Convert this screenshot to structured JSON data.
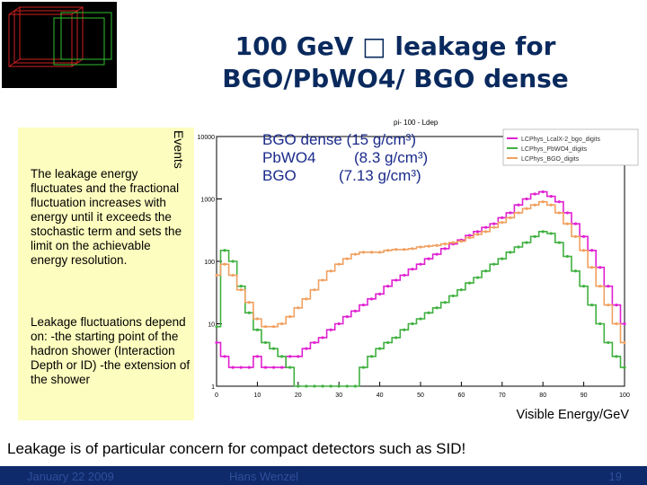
{
  "slide": {
    "title_line1": "100 GeV □ leakage for",
    "title_line2": "BGO/PbWO4/ BGO dense",
    "note1": "The leakage energy fluctuates and the fractional fluctuation increases with energy until it exceeds the stochastic term and sets the limit on the achievable energy resolution.",
    "note2": "Leakage fluctuations depend on: -the starting point of the hadron shower (Interaction Depth or ID) -the extension of the shower",
    "legend_line1": "BGO dense (15 g/cm³)",
    "legend_line2": "PbWO4         (8.3 g/cm³)",
    "legend_line3": "BGO          (7.13 g/cm³)",
    "bottom_text": "Leakage is of particular concern for compact detectors such as SID!",
    "footer_date": "January 22 2009",
    "footer_author": "Hans Wenzel",
    "footer_page": "19"
  },
  "chart_data": {
    "type": "line",
    "title": "pi- 100 - Ldep",
    "ylabel": "Events",
    "xlabel": "Visible Energy/GeV",
    "ylog": true,
    "ylim": [
      1,
      10000
    ],
    "xlim": [
      0,
      100
    ],
    "xticks": [
      0,
      10,
      20,
      30,
      40,
      50,
      60,
      70,
      80,
      90,
      100
    ],
    "yticks": [
      1,
      10,
      100,
      1000,
      10000
    ],
    "legend": [
      "LCPhys_LcalX-2_bgo_digits",
      "LCPhys_PbWO4_digits",
      "LCPhys_BGO_digits"
    ],
    "colors": {
      "magenta": "#e020d0",
      "green": "#40b040",
      "orange": "#f0a060"
    },
    "x": [
      0,
      2,
      4,
      6,
      8,
      10,
      12,
      14,
      16,
      18,
      20,
      22,
      24,
      26,
      28,
      30,
      32,
      34,
      36,
      38,
      40,
      42,
      44,
      46,
      48,
      50,
      52,
      54,
      56,
      58,
      60,
      62,
      64,
      66,
      68,
      70,
      72,
      74,
      76,
      78,
      80,
      82,
      84,
      86,
      88,
      90,
      92,
      94,
      96,
      98,
      100
    ],
    "series": [
      {
        "name": "LCPhys_LcalX-2_bgo_digits",
        "color": "#e020d0",
        "values": [
          5,
          3,
          2,
          2,
          2,
          3,
          2,
          2,
          2,
          3,
          3,
          4,
          5,
          6,
          8,
          10,
          13,
          16,
          20,
          25,
          30,
          40,
          50,
          60,
          75,
          90,
          110,
          130,
          160,
          190,
          220,
          260,
          300,
          350,
          400,
          500,
          600,
          800,
          1000,
          1200,
          1300,
          1100,
          900,
          600,
          400,
          250,
          150,
          80,
          40,
          20,
          10
        ]
      },
      {
        "name": "LCPhys_PbWO4_digits",
        "color": "#40b040",
        "values": [
          9,
          150,
          100,
          40,
          15,
          8,
          5,
          4,
          3,
          2,
          1,
          1,
          1,
          1,
          1,
          1,
          1,
          1,
          2,
          3,
          4,
          5,
          6,
          8,
          10,
          12,
          15,
          18,
          22,
          28,
          35,
          45,
          55,
          70,
          90,
          110,
          140,
          170,
          200,
          250,
          300,
          280,
          200,
          120,
          70,
          40,
          20,
          10,
          5,
          3,
          2
        ]
      },
      {
        "name": "LCPhys_BGO_digits",
        "color": "#f0a060",
        "values": [
          60,
          90,
          60,
          35,
          22,
          12,
          9,
          9,
          10,
          13,
          18,
          25,
          35,
          50,
          70,
          90,
          110,
          130,
          140,
          140,
          140,
          150,
          155,
          155,
          160,
          170,
          175,
          180,
          190,
          200,
          210,
          240,
          270,
          300,
          350,
          420,
          500,
          600,
          700,
          800,
          900,
          800,
          600,
          400,
          250,
          150,
          80,
          40,
          20,
          10,
          5
        ]
      }
    ]
  }
}
